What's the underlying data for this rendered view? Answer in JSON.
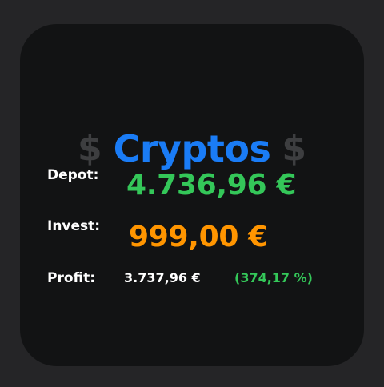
{
  "widget": {
    "title": "Cryptos",
    "currency_symbol_left": "$",
    "currency_symbol_right": "$",
    "depot": {
      "label": "Depot:",
      "value": "4.736,96 €"
    },
    "invest": {
      "label": "Invest:",
      "value": "999,00 €"
    },
    "profit": {
      "label": "Profit:",
      "value": "3.737,96 €",
      "percent": "(374,17 %)"
    },
    "colors": {
      "title": "#1a7cf6",
      "depot": "#34c759",
      "invest": "#ff9500",
      "percent": "#34c759",
      "dollar": "#3d3e40"
    },
    "icons": {
      "left": "dollar-sign-icon",
      "right": "dollar-sign-icon"
    }
  }
}
